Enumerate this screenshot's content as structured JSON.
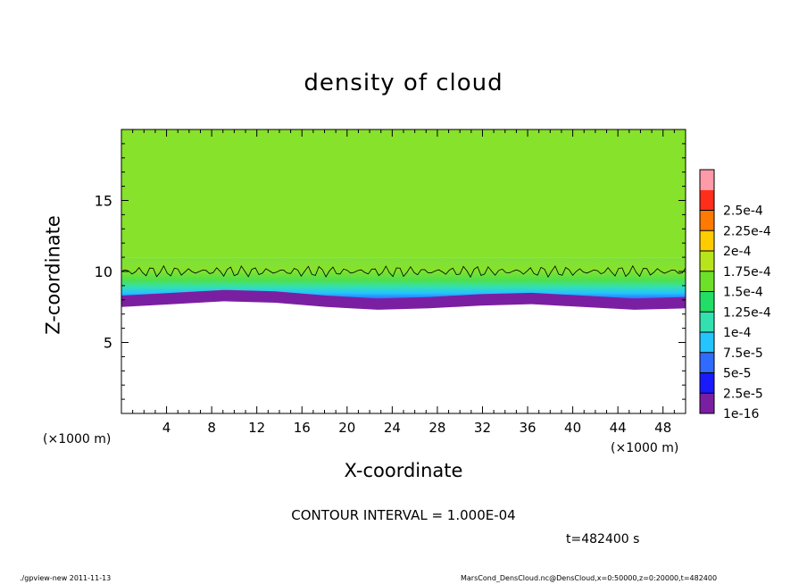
{
  "chart_data": {
    "type": "heatmap",
    "title": "density of cloud",
    "xlabel": "X-coordinate",
    "ylabel": "Z-coordinate",
    "x_unit_label": "(×1000 m)",
    "xlim": [
      0,
      50
    ],
    "ylim": [
      0,
      20
    ],
    "xticks": [
      4,
      8,
      12,
      16,
      20,
      24,
      28,
      32,
      36,
      40,
      44,
      48
    ],
    "yticks": [
      5,
      10,
      15
    ],
    "colorbar": {
      "labels": [
        "1e-16",
        "2.5e-5",
        "5e-5",
        "7.5e-5",
        "1e-4",
        "1.25e-4",
        "1.5e-4",
        "1.75e-4",
        "2e-4",
        "2.25e-4",
        "2.5e-4"
      ],
      "colors": [
        "#7b1fa2",
        "#1a1aff",
        "#2f6bff",
        "#25c4ff",
        "#33e0b0",
        "#22dd66",
        "#6ee02a",
        "#b7e41a",
        "#ffcc00",
        "#ff7a00",
        "#ff2e1a",
        "#ff9aa8"
      ]
    },
    "field": {
      "cloud_base_z": [
        8.0,
        8.2,
        8.4,
        8.3,
        8.0,
        7.8,
        7.9,
        8.1,
        8.2,
        8.0,
        7.8,
        7.9
      ],
      "contour_1e-4_z": 10.0,
      "description_values": {
        "below_base": "none",
        "base_layer": "1e-16 to 2.5e-5",
        "transition": "5e-5 to 1e-4",
        "upper_layer": "1.25e-4 to 1.5e-4"
      }
    },
    "contour_interval": "CONTOUR INTERVAL = 1.000E-04"
  },
  "time_label": "t=482400 s",
  "footer_left": "./gpview-new   2011-11-13",
  "footer_right": "MarsCond_DensCloud.nc@DensCloud,x=0:50000,z=0:20000,t=482400"
}
